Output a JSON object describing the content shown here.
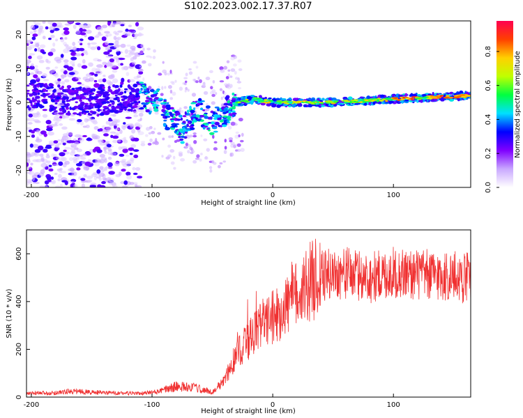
{
  "title": "S102.2023.002.17.37.R07",
  "chart_data": [
    {
      "type": "heatmap",
      "xlabel": "Height of straight line (km)",
      "ylabel": "Frequency (Hz)",
      "xlim": [
        -204,
        164
      ],
      "ylim": [
        -25,
        24
      ],
      "xticks": [
        -200,
        -100,
        0,
        100
      ],
      "yticks": [
        -20,
        -10,
        0,
        10,
        20
      ],
      "colorbar": {
        "label": "Normalized spectral amplitude",
        "range": [
          0,
          0.98
        ],
        "ticks": [
          0.0,
          0.2,
          0.4,
          0.6,
          0.8
        ],
        "colormap": [
          "#ffffff",
          "#c9a8ff",
          "#8000ff",
          "#0000ff",
          "#00e0ff",
          "#00ff40",
          "#c0ff00",
          "#ffd000",
          "#ff4000",
          "#ff0050"
        ]
      },
      "ridge": [
        {
          "x": -200,
          "f": 2
        },
        {
          "x": -150,
          "f": 0
        },
        {
          "x": -110,
          "f": 2
        },
        {
          "x": -95,
          "f": 0
        },
        {
          "x": -85,
          "f": -5
        },
        {
          "x": -75,
          "f": -8
        },
        {
          "x": -62,
          "f": -2
        },
        {
          "x": -50,
          "f": -6
        },
        {
          "x": -40,
          "f": -3
        },
        {
          "x": -30,
          "f": 0
        },
        {
          "x": -15,
          "f": 1
        },
        {
          "x": 0,
          "f": 0
        },
        {
          "x": 50,
          "f": 0
        },
        {
          "x": 100,
          "f": 1
        },
        {
          "x": 130,
          "f": 1.5
        },
        {
          "x": 164,
          "f": 2
        }
      ]
    },
    {
      "type": "line",
      "xlabel": "Height of straight line (km)",
      "ylabel": "SNR (10 * v/v)",
      "xlim": [
        -204,
        164
      ],
      "ylim": [
        0,
        700
      ],
      "xticks": [
        -200,
        -100,
        0,
        100
      ],
      "yticks": [
        0,
        200,
        400,
        600
      ],
      "line_color": "#f03030",
      "envelope": [
        {
          "x": -204,
          "y": 15
        },
        {
          "x": -180,
          "y": 18
        },
        {
          "x": -165,
          "y": 25
        },
        {
          "x": -140,
          "y": 18
        },
        {
          "x": -110,
          "y": 15
        },
        {
          "x": -95,
          "y": 22
        },
        {
          "x": -80,
          "y": 45
        },
        {
          "x": -65,
          "y": 40
        },
        {
          "x": -50,
          "y": 20
        },
        {
          "x": -40,
          "y": 70
        },
        {
          "x": -30,
          "y": 180
        },
        {
          "x": -20,
          "y": 240
        },
        {
          "x": -10,
          "y": 300
        },
        {
          "x": 0,
          "y": 330
        },
        {
          "x": 10,
          "y": 380
        },
        {
          "x": 20,
          "y": 430
        },
        {
          "x": 30,
          "y": 480
        },
        {
          "x": 40,
          "y": 510
        },
        {
          "x": 60,
          "y": 520
        },
        {
          "x": 80,
          "y": 500
        },
        {
          "x": 100,
          "y": 520
        },
        {
          "x": 130,
          "y": 510
        },
        {
          "x": 164,
          "y": 500
        }
      ]
    }
  ]
}
